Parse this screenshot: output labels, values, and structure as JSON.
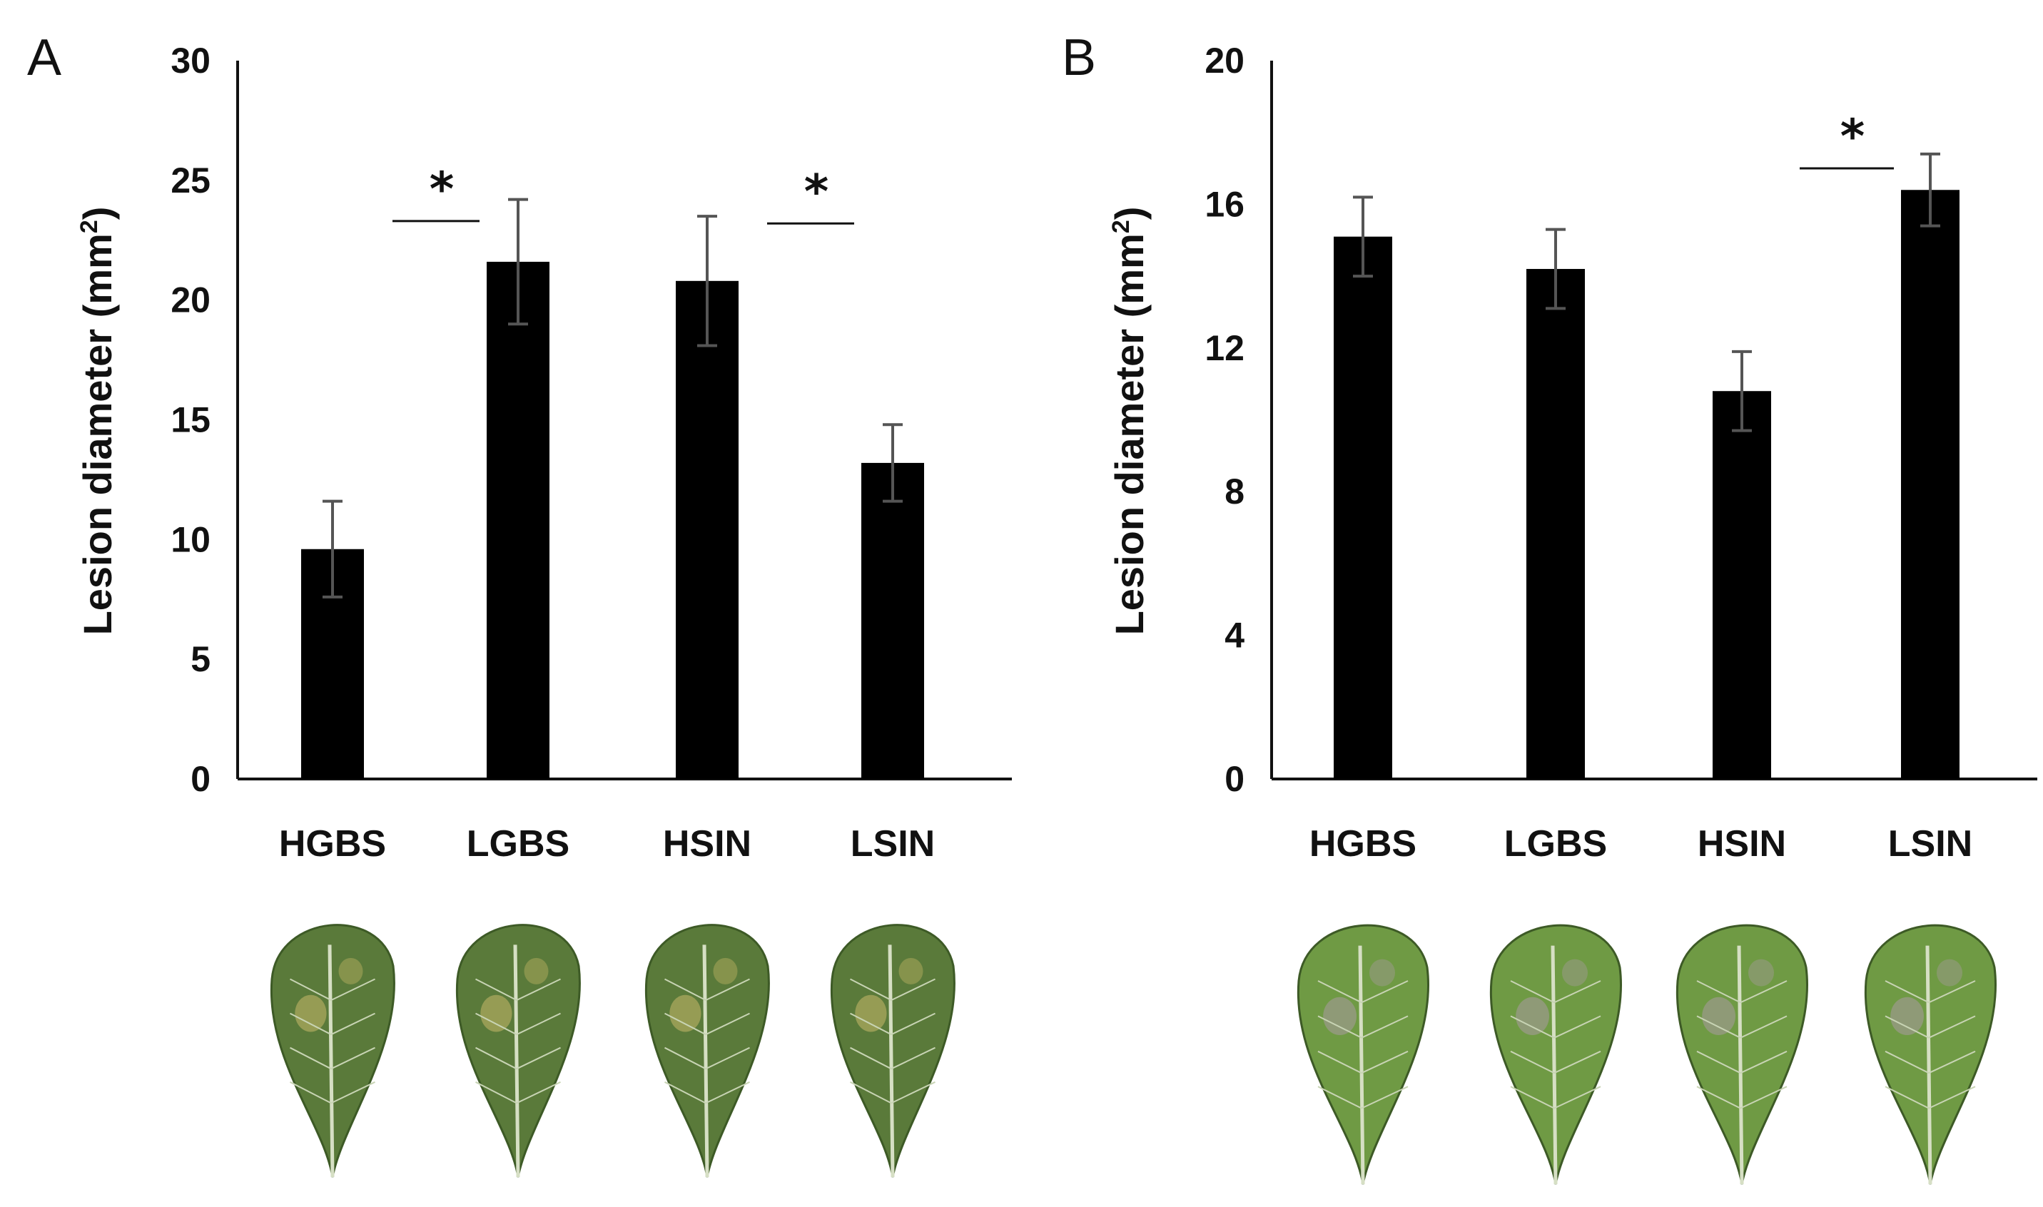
{
  "chart_data": [
    {
      "type": "bar",
      "panel": "A",
      "categories": [
        "HGBS",
        "LGBS",
        "HSIN",
        "LSIN"
      ],
      "values": [
        9.6,
        21.6,
        20.8,
        13.2
      ],
      "error": [
        2.0,
        2.6,
        2.7,
        1.6
      ],
      "ylabel": "Lesion diameter (mm",
      "ylabel_sup": "2",
      "ylabel_end": ")",
      "ylim": [
        0,
        30
      ],
      "yticks": [
        "0",
        "5",
        "10",
        "15",
        "20",
        "25",
        "30"
      ],
      "ytick_values": [
        0,
        5,
        10,
        15,
        20,
        25,
        30
      ],
      "significance": [
        {
          "between": [
            "HGBS",
            "LGBS"
          ],
          "label": "*",
          "level": 23.3
        },
        {
          "between": [
            "HSIN",
            "LSIN"
          ],
          "label": "*",
          "level": 23.2
        }
      ],
      "leaf_photos": {
        "count": 4,
        "color": "#5a7a3a",
        "spot_color": "#c9b86a"
      }
    },
    {
      "type": "bar",
      "panel": "B",
      "categories": [
        "HGBS",
        "LGBS",
        "HSIN",
        "LSIN"
      ],
      "values": [
        15.1,
        14.2,
        10.8,
        16.4
      ],
      "error": [
        1.1,
        1.1,
        1.1,
        1.0
      ],
      "ylabel": "Lesion diameter (mm",
      "ylabel_sup": "2",
      "ylabel_end": ")",
      "ylim": [
        0,
        20
      ],
      "yticks": [
        "0",
        "4",
        "8",
        "12",
        "16",
        "20"
      ],
      "ytick_values": [
        0,
        4,
        8,
        12,
        16,
        20
      ],
      "significance": [
        {
          "between": [
            "HSIN",
            "LSIN"
          ],
          "label": "*",
          "level": 17.0
        }
      ],
      "leaf_photos": {
        "count": 4,
        "color": "#6f9a44",
        "spot_color": "#a99aa3"
      }
    }
  ]
}
